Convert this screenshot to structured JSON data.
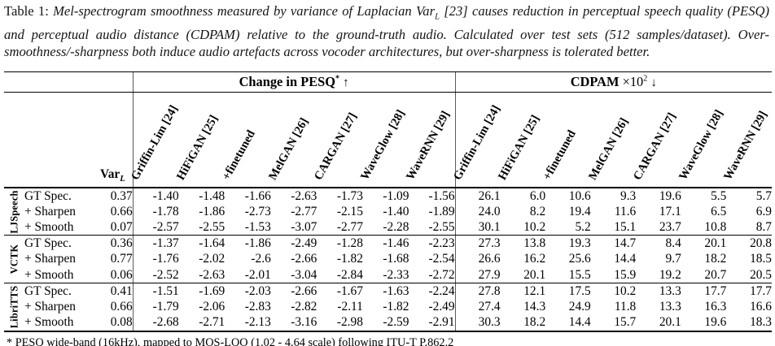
{
  "caption": {
    "label": "Table 1:",
    "seg1": " Mel-spectrogram smoothness measured by variance of Laplacian ",
    "varl_text": "Var",
    "varl_sub": "L",
    "seg2": " [23] causes reduction in perceptual speech quality (PESQ) and perceptual audio distance (CDPAM) relative to the ground-truth audio. Calculated over test sets (512 samples/dataset). Over-smoothness/-sharpness both induce audio artefacts across vocoder architectures, but over-sharpness is tolerated better."
  },
  "table": {
    "pesq_header": {
      "text": "Change in PESQ",
      "sup": "*",
      "arrow": "↑"
    },
    "cdpam_header": {
      "text": "CDPAM",
      "times": "×10",
      "sup": "2",
      "arrow": "↓"
    },
    "varl_header": {
      "text": "Var",
      "sub": "L"
    },
    "vocoders": [
      "Griffin-Lim [24]",
      "HiFiGAN [25]",
      "+finetuned",
      "MelGAN [26]",
      "CARGAN [27]",
      "WaveGlow [28]",
      "WaveRNN [29]"
    ],
    "groups": [
      {
        "dataset": "LJSpeech",
        "rows": [
          {
            "label": "GT Spec.",
            "varl": "0.37",
            "pesq": [
              "-1.40",
              "-1.48",
              "-1.66",
              "-2.63",
              "-1.73",
              "-1.09",
              "-1.56"
            ],
            "cdpam": [
              "26.1",
              "6.0",
              "10.6",
              "9.3",
              "19.6",
              "5.5",
              "5.7"
            ]
          },
          {
            "label": "+ Sharpen",
            "varl": "0.66",
            "pesq": [
              "-1.78",
              "-1.86",
              "-2.73",
              "-2.77",
              "-2.15",
              "-1.40",
              "-1.89"
            ],
            "cdpam": [
              "24.0",
              "8.2",
              "19.4",
              "11.6",
              "17.1",
              "6.5",
              "6.9"
            ]
          },
          {
            "label": "+ Smooth",
            "varl": "0.07",
            "pesq": [
              "-2.57",
              "-2.55",
              "-1.53",
              "-3.07",
              "-2.77",
              "-2.28",
              "-2.55"
            ],
            "cdpam": [
              "30.1",
              "10.2",
              "5.2",
              "15.1",
              "23.7",
              "10.8",
              "8.7"
            ]
          }
        ]
      },
      {
        "dataset": "VCTK",
        "rows": [
          {
            "label": "GT Spec.",
            "varl": "0.36",
            "pesq": [
              "-1.37",
              "-1.64",
              "-1.86",
              "-2.49",
              "-1.28",
              "-1.46",
              "-2.23"
            ],
            "cdpam": [
              "27.3",
              "13.8",
              "19.3",
              "14.7",
              "8.4",
              "20.1",
              "20.8"
            ]
          },
          {
            "label": "+ Sharpen",
            "varl": "0.77",
            "pesq": [
              "-1.76",
              "-2.02",
              "-2.6",
              "-2.66",
              "-1.82",
              "-1.68",
              "-2.54"
            ],
            "cdpam": [
              "26.6",
              "16.2",
              "25.6",
              "14.4",
              "9.7",
              "18.2",
              "18.5"
            ]
          },
          {
            "label": "+ Smooth",
            "varl": "0.06",
            "pesq": [
              "-2.52",
              "-2.63",
              "-2.01",
              "-3.04",
              "-2.84",
              "-2.33",
              "-2.72"
            ],
            "cdpam": [
              "27.9",
              "20.1",
              "15.5",
              "15.9",
              "19.2",
              "20.7",
              "20.5"
            ]
          }
        ]
      },
      {
        "dataset": "LibriTTS",
        "rows": [
          {
            "label": "GT Spec.",
            "varl": "0.41",
            "pesq": [
              "-1.51",
              "-1.69",
              "-2.03",
              "-2.66",
              "-1.67",
              "-1.63",
              "-2.24"
            ],
            "cdpam": [
              "27.8",
              "12.1",
              "17.5",
              "10.2",
              "13.3",
              "17.7",
              "17.7"
            ]
          },
          {
            "label": "+ Sharpen",
            "varl": "0.66",
            "pesq": [
              "-1.79",
              "-2.06",
              "-2.83",
              "-2.82",
              "-2.11",
              "-1.82",
              "-2.49"
            ],
            "cdpam": [
              "27.4",
              "14.3",
              "24.9",
              "11.8",
              "13.3",
              "16.3",
              "16.6"
            ]
          },
          {
            "label": "+ Smooth",
            "varl": "0.08",
            "pesq": [
              "-2.68",
              "-2.71",
              "-2.13",
              "-3.16",
              "-2.98",
              "-2.59",
              "-2.91"
            ],
            "cdpam": [
              "30.3",
              "18.2",
              "14.4",
              "15.7",
              "20.1",
              "19.6",
              "18.3"
            ]
          }
        ]
      }
    ]
  },
  "footnote": "* PESQ wide-band (16kHz), mapped to MOS-LQO (1.02 - 4.64 scale) following ITU-T P.862.2",
  "colors": {
    "text": "#111111",
    "rule": "#000000",
    "vertical_rule": "#5a5a5a",
    "background": "#ffffff"
  }
}
